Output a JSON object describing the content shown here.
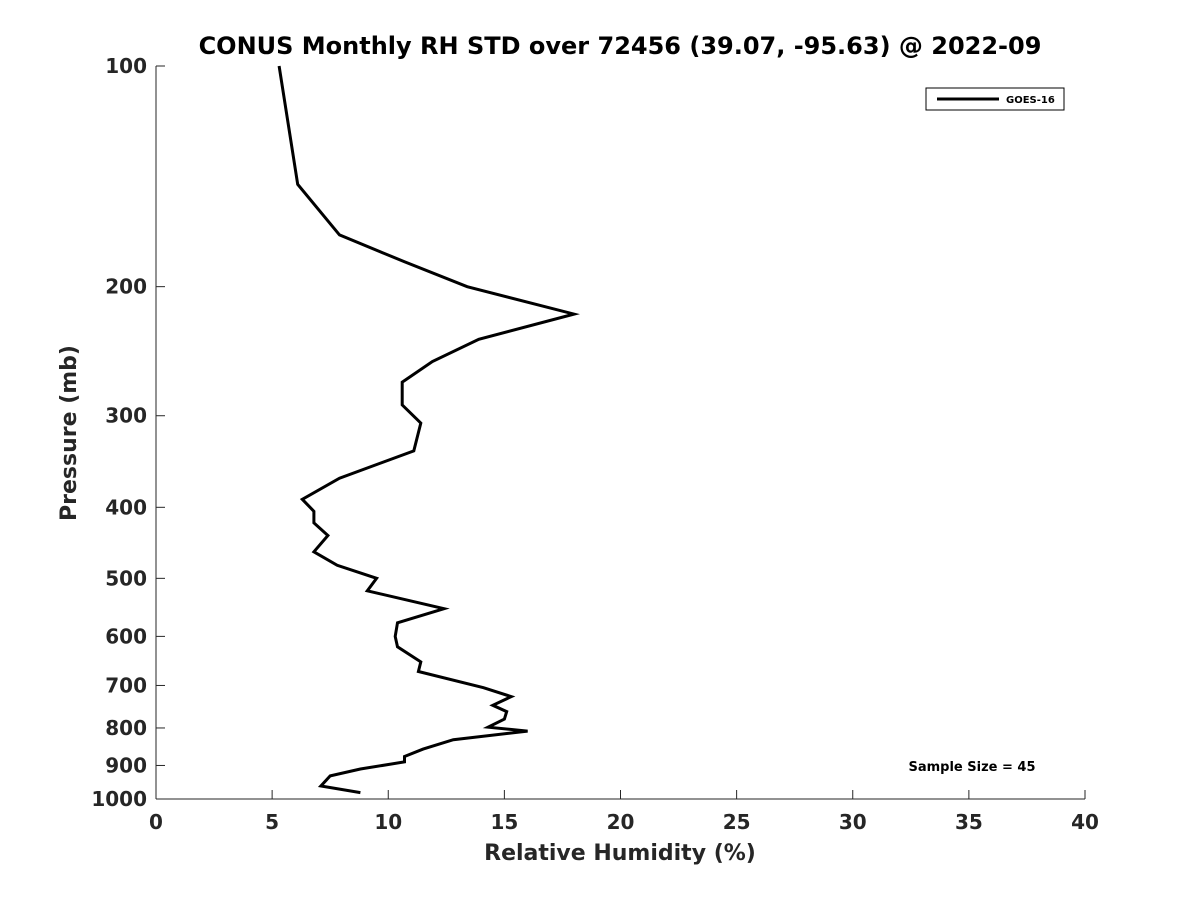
{
  "chart_data": {
    "type": "line",
    "title": "CONUS Monthly RH STD over 72456 (39.07, -95.63) @ 2022-09",
    "xlabel": "Relative Humidity (%)",
    "ylabel": "Pressure (mb)",
    "xlim": [
      0,
      40
    ],
    "ylim": [
      100,
      1000
    ],
    "y_scale": "log",
    "y_reversed": true,
    "xticks": [
      0,
      5,
      10,
      15,
      20,
      25,
      30,
      35,
      40
    ],
    "yticks": [
      100,
      200,
      300,
      400,
      500,
      600,
      700,
      800,
      900,
      1000
    ],
    "grid": false,
    "legend_position": "top-right",
    "annotation": "Sample Size = 45",
    "series": [
      {
        "name": "GOES-16",
        "color": "#000000",
        "x": [
          5.3,
          6.1,
          7.9,
          10.7,
          13.4,
          18.0,
          13.9,
          11.9,
          10.6,
          10.6,
          11.4,
          11.1,
          7.9,
          6.3,
          6.8,
          6.8,
          7.4,
          6.8,
          7.8,
          9.5,
          9.1,
          12.4,
          10.4,
          10.3,
          10.4,
          11.4,
          11.3,
          14.1,
          15.3,
          14.5,
          15.1,
          15.0,
          14.3,
          16.0,
          12.8,
          11.5,
          10.7,
          10.7,
          8.8,
          7.5,
          7.1,
          8.8
        ],
        "y": [
          100,
          145,
          170,
          185,
          200,
          218,
          236,
          253,
          270,
          290,
          307,
          335,
          365,
          390,
          405,
          420,
          437,
          460,
          480,
          500,
          520,
          550,
          575,
          600,
          620,
          650,
          670,
          705,
          725,
          745,
          760,
          778,
          798,
          808,
          830,
          855,
          875,
          890,
          910,
          930,
          960,
          980
        ]
      }
    ]
  }
}
